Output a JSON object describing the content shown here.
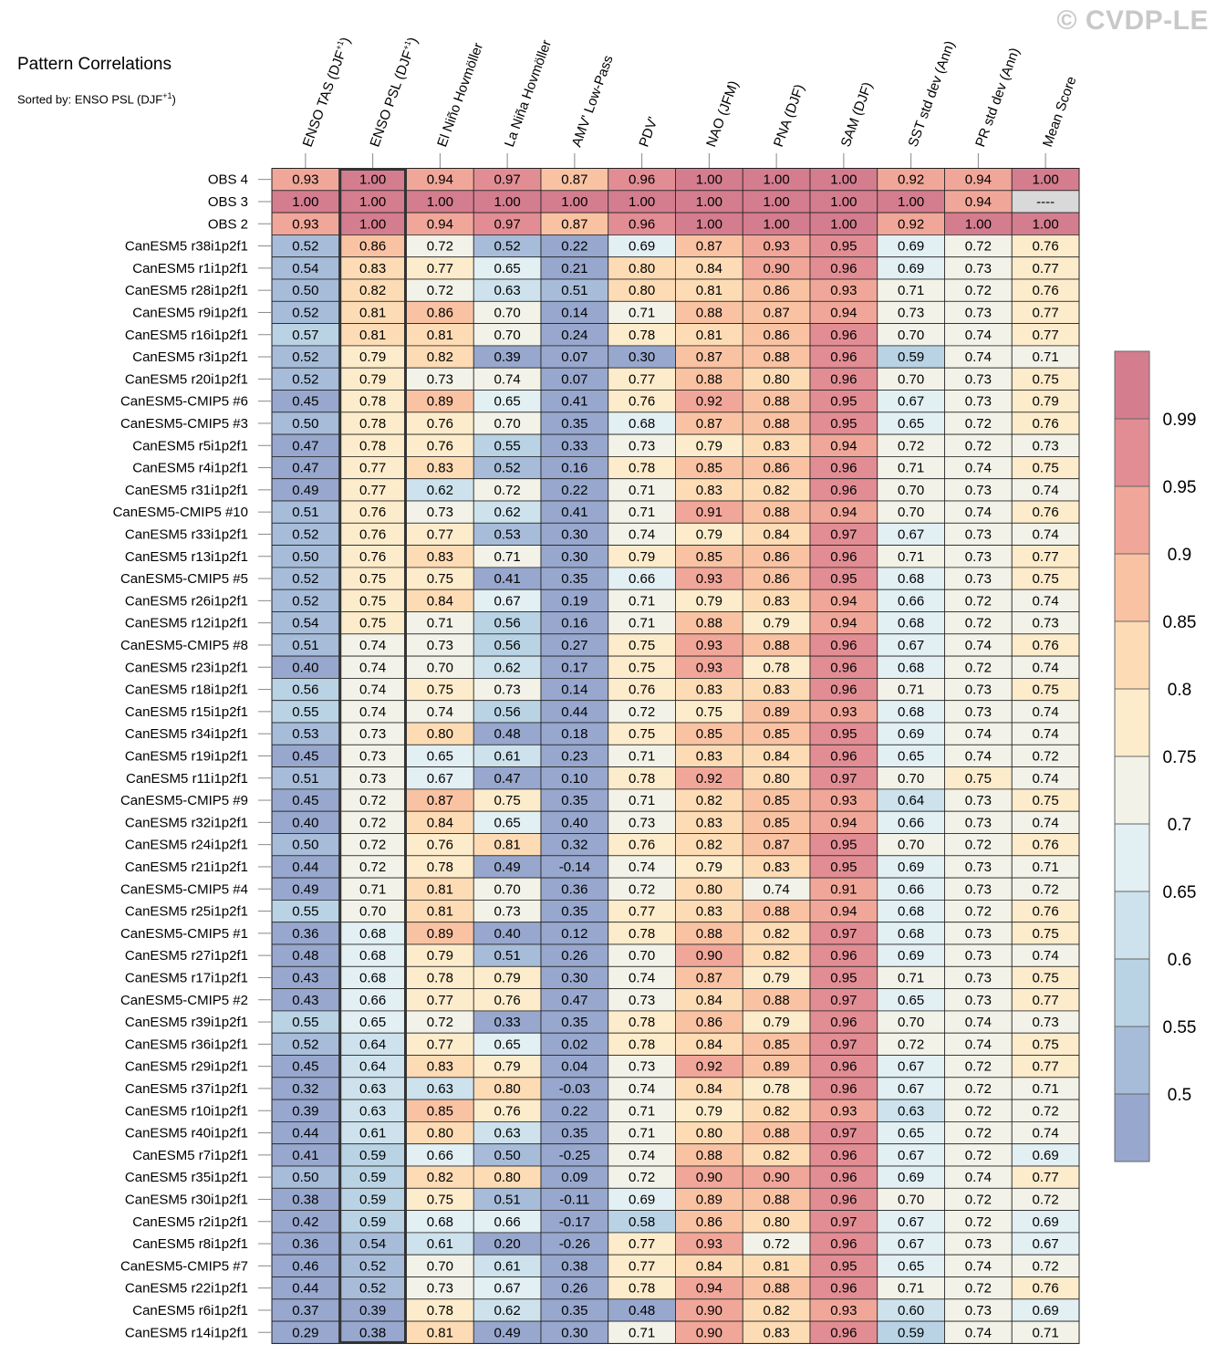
{
  "title": "Pattern Correlations",
  "subtitle_main": "Sorted by: ENSO PSL (DJF",
  "subtitle_sup": "+1",
  "subtitle_end": ")",
  "watermark": "© CVDP-LE",
  "chart_data": {
    "type": "heatmap",
    "title": "Pattern Correlations",
    "subtitle": "Sorted by: ENSO PSL (DJF+1)",
    "highlight_column": 1,
    "missing_label": "----",
    "columns": [
      {
        "main": "ENSO TAS (DJF",
        "sup": "+1",
        "end": ")"
      },
      {
        "main": "ENSO PSL (DJF",
        "sup": "+1",
        "end": ")"
      },
      {
        "main": "El Niño Hovmöller",
        "sup": "",
        "end": ""
      },
      {
        "main": "La Niña Hovmöller",
        "sup": "",
        "end": ""
      },
      {
        "main": "AMV' Low-Pass",
        "sup": "",
        "end": ""
      },
      {
        "main": "PDV'",
        "sup": "",
        "end": ""
      },
      {
        "main": "NAO (JFM)",
        "sup": "",
        "end": ""
      },
      {
        "main": "PNA (DJF)",
        "sup": "",
        "end": ""
      },
      {
        "main": "SAM (DJF)",
        "sup": "",
        "end": ""
      },
      {
        "main": "SST std dev (Ann)",
        "sup": "",
        "end": ""
      },
      {
        "main": "PR std dev (Ann)",
        "sup": "",
        "end": ""
      },
      {
        "main": "Mean Score",
        "sup": "",
        "end": ""
      }
    ],
    "rows": [
      {
        "name": "OBS 4",
        "values": [
          0.93,
          1.0,
          0.94,
          0.97,
          0.87,
          0.96,
          1.0,
          1.0,
          1.0,
          0.92,
          0.94,
          1.0
        ]
      },
      {
        "name": "OBS 3",
        "values": [
          1.0,
          1.0,
          1.0,
          1.0,
          1.0,
          1.0,
          1.0,
          1.0,
          1.0,
          1.0,
          0.94,
          null
        ]
      },
      {
        "name": "OBS 2",
        "values": [
          0.93,
          1.0,
          0.94,
          0.97,
          0.87,
          0.96,
          1.0,
          1.0,
          1.0,
          0.92,
          1.0,
          1.0
        ]
      },
      {
        "name": "CanESM5 r38i1p2f1",
        "values": [
          0.52,
          0.86,
          0.72,
          0.52,
          0.22,
          0.69,
          0.87,
          0.93,
          0.95,
          0.69,
          0.72,
          0.76
        ]
      },
      {
        "name": "CanESM5 r1i1p2f1",
        "values": [
          0.54,
          0.83,
          0.77,
          0.65,
          0.21,
          0.8,
          0.84,
          0.9,
          0.96,
          0.69,
          0.73,
          0.77
        ]
      },
      {
        "name": "CanESM5 r28i1p2f1",
        "values": [
          0.5,
          0.82,
          0.72,
          0.63,
          0.51,
          0.8,
          0.81,
          0.86,
          0.93,
          0.71,
          0.72,
          0.76
        ]
      },
      {
        "name": "CanESM5 r9i1p2f1",
        "values": [
          0.52,
          0.81,
          0.86,
          0.7,
          0.14,
          0.71,
          0.88,
          0.87,
          0.94,
          0.73,
          0.73,
          0.77
        ]
      },
      {
        "name": "CanESM5 r16i1p2f1",
        "values": [
          0.57,
          0.81,
          0.81,
          0.7,
          0.24,
          0.78,
          0.81,
          0.86,
          0.96,
          0.7,
          0.74,
          0.77
        ]
      },
      {
        "name": "CanESM5 r3i1p2f1",
        "values": [
          0.52,
          0.79,
          0.82,
          0.39,
          0.07,
          0.3,
          0.87,
          0.88,
          0.96,
          0.59,
          0.74,
          0.71
        ]
      },
      {
        "name": "CanESM5 r20i1p2f1",
        "values": [
          0.52,
          0.79,
          0.73,
          0.74,
          0.07,
          0.77,
          0.88,
          0.8,
          0.96,
          0.7,
          0.73,
          0.75
        ]
      },
      {
        "name": "CanESM5-CMIP5 #6",
        "values": [
          0.45,
          0.78,
          0.89,
          0.65,
          0.41,
          0.76,
          0.92,
          0.88,
          0.95,
          0.67,
          0.73,
          0.79
        ]
      },
      {
        "name": "CanESM5-CMIP5 #3",
        "values": [
          0.5,
          0.78,
          0.76,
          0.7,
          0.35,
          0.68,
          0.87,
          0.88,
          0.95,
          0.65,
          0.72,
          0.76
        ]
      },
      {
        "name": "CanESM5 r5i1p2f1",
        "values": [
          0.47,
          0.78,
          0.76,
          0.55,
          0.33,
          0.73,
          0.79,
          0.83,
          0.94,
          0.72,
          0.72,
          0.73
        ]
      },
      {
        "name": "CanESM5 r4i1p2f1",
        "values": [
          0.47,
          0.77,
          0.83,
          0.52,
          0.16,
          0.78,
          0.85,
          0.86,
          0.96,
          0.71,
          0.74,
          0.75
        ]
      },
      {
        "name": "CanESM5 r31i1p2f1",
        "values": [
          0.49,
          0.77,
          0.62,
          0.72,
          0.22,
          0.71,
          0.83,
          0.82,
          0.96,
          0.7,
          0.73,
          0.74
        ]
      },
      {
        "name": "CanESM5-CMIP5 #10",
        "values": [
          0.51,
          0.76,
          0.73,
          0.62,
          0.41,
          0.71,
          0.91,
          0.88,
          0.94,
          0.7,
          0.74,
          0.76
        ]
      },
      {
        "name": "CanESM5 r33i1p2f1",
        "values": [
          0.52,
          0.76,
          0.77,
          0.53,
          0.3,
          0.74,
          0.79,
          0.84,
          0.97,
          0.67,
          0.73,
          0.74
        ]
      },
      {
        "name": "CanESM5 r13i1p2f1",
        "values": [
          0.5,
          0.76,
          0.83,
          0.71,
          0.3,
          0.79,
          0.85,
          0.86,
          0.96,
          0.71,
          0.73,
          0.77
        ]
      },
      {
        "name": "CanESM5-CMIP5 #5",
        "values": [
          0.52,
          0.75,
          0.75,
          0.41,
          0.35,
          0.66,
          0.93,
          0.86,
          0.95,
          0.68,
          0.73,
          0.75
        ]
      },
      {
        "name": "CanESM5 r26i1p2f1",
        "values": [
          0.52,
          0.75,
          0.84,
          0.67,
          0.19,
          0.71,
          0.79,
          0.83,
          0.94,
          0.66,
          0.72,
          0.74
        ]
      },
      {
        "name": "CanESM5 r12i1p2f1",
        "values": [
          0.54,
          0.75,
          0.71,
          0.56,
          0.16,
          0.71,
          0.88,
          0.79,
          0.94,
          0.68,
          0.72,
          0.73
        ]
      },
      {
        "name": "CanESM5-CMIP5 #8",
        "values": [
          0.51,
          0.74,
          0.73,
          0.56,
          0.27,
          0.75,
          0.93,
          0.88,
          0.96,
          0.67,
          0.74,
          0.76
        ]
      },
      {
        "name": "CanESM5 r23i1p2f1",
        "values": [
          0.4,
          0.74,
          0.7,
          0.62,
          0.17,
          0.75,
          0.93,
          0.78,
          0.96,
          0.68,
          0.72,
          0.74
        ]
      },
      {
        "name": "CanESM5 r18i1p2f1",
        "values": [
          0.56,
          0.74,
          0.75,
          0.73,
          0.14,
          0.76,
          0.83,
          0.83,
          0.96,
          0.71,
          0.73,
          0.75
        ]
      },
      {
        "name": "CanESM5 r15i1p2f1",
        "values": [
          0.55,
          0.74,
          0.74,
          0.56,
          0.44,
          0.72,
          0.75,
          0.89,
          0.93,
          0.68,
          0.73,
          0.74
        ]
      },
      {
        "name": "CanESM5 r34i1p2f1",
        "values": [
          0.53,
          0.73,
          0.8,
          0.48,
          0.18,
          0.75,
          0.85,
          0.85,
          0.95,
          0.69,
          0.74,
          0.74
        ]
      },
      {
        "name": "CanESM5 r19i1p2f1",
        "values": [
          0.45,
          0.73,
          0.65,
          0.61,
          0.23,
          0.71,
          0.83,
          0.84,
          0.96,
          0.65,
          0.74,
          0.72
        ]
      },
      {
        "name": "CanESM5 r11i1p2f1",
        "values": [
          0.51,
          0.73,
          0.67,
          0.47,
          0.1,
          0.78,
          0.92,
          0.8,
          0.97,
          0.7,
          0.75,
          0.74
        ]
      },
      {
        "name": "CanESM5-CMIP5 #9",
        "values": [
          0.45,
          0.72,
          0.87,
          0.75,
          0.35,
          0.71,
          0.82,
          0.85,
          0.93,
          0.64,
          0.73,
          0.75
        ]
      },
      {
        "name": "CanESM5 r32i1p2f1",
        "values": [
          0.4,
          0.72,
          0.84,
          0.65,
          0.4,
          0.73,
          0.83,
          0.85,
          0.94,
          0.66,
          0.73,
          0.74
        ]
      },
      {
        "name": "CanESM5 r24i1p2f1",
        "values": [
          0.5,
          0.72,
          0.76,
          0.81,
          0.32,
          0.76,
          0.82,
          0.87,
          0.95,
          0.7,
          0.72,
          0.76
        ]
      },
      {
        "name": "CanESM5 r21i1p2f1",
        "values": [
          0.44,
          0.72,
          0.78,
          0.49,
          -0.14,
          0.74,
          0.79,
          0.83,
          0.95,
          0.69,
          0.73,
          0.71
        ]
      },
      {
        "name": "CanESM5-CMIP5 #4",
        "values": [
          0.49,
          0.71,
          0.81,
          0.7,
          0.36,
          0.72,
          0.8,
          0.74,
          0.91,
          0.66,
          0.73,
          0.72
        ]
      },
      {
        "name": "CanESM5 r25i1p2f1",
        "values": [
          0.55,
          0.7,
          0.81,
          0.73,
          0.35,
          0.77,
          0.83,
          0.88,
          0.94,
          0.68,
          0.72,
          0.76
        ]
      },
      {
        "name": "CanESM5-CMIP5 #1",
        "values": [
          0.36,
          0.68,
          0.89,
          0.4,
          0.12,
          0.78,
          0.88,
          0.82,
          0.97,
          0.68,
          0.73,
          0.75
        ]
      },
      {
        "name": "CanESM5 r27i1p2f1",
        "values": [
          0.48,
          0.68,
          0.79,
          0.51,
          0.26,
          0.7,
          0.9,
          0.82,
          0.96,
          0.69,
          0.73,
          0.74
        ]
      },
      {
        "name": "CanESM5 r17i1p2f1",
        "values": [
          0.43,
          0.68,
          0.78,
          0.79,
          0.3,
          0.74,
          0.87,
          0.79,
          0.95,
          0.71,
          0.73,
          0.75
        ]
      },
      {
        "name": "CanESM5-CMIP5 #2",
        "values": [
          0.43,
          0.66,
          0.77,
          0.76,
          0.47,
          0.73,
          0.84,
          0.88,
          0.97,
          0.65,
          0.73,
          0.77
        ]
      },
      {
        "name": "CanESM5 r39i1p2f1",
        "values": [
          0.55,
          0.65,
          0.72,
          0.33,
          0.35,
          0.78,
          0.86,
          0.79,
          0.96,
          0.7,
          0.74,
          0.73
        ]
      },
      {
        "name": "CanESM5 r36i1p2f1",
        "values": [
          0.52,
          0.64,
          0.77,
          0.65,
          0.02,
          0.78,
          0.84,
          0.85,
          0.97,
          0.72,
          0.74,
          0.75
        ]
      },
      {
        "name": "CanESM5 r29i1p2f1",
        "values": [
          0.45,
          0.64,
          0.83,
          0.79,
          0.04,
          0.73,
          0.92,
          0.89,
          0.96,
          0.67,
          0.72,
          0.77
        ]
      },
      {
        "name": "CanESM5 r37i1p2f1",
        "values": [
          0.32,
          0.63,
          0.63,
          0.8,
          -0.03,
          0.74,
          0.84,
          0.78,
          0.96,
          0.67,
          0.72,
          0.71
        ]
      },
      {
        "name": "CanESM5 r10i1p2f1",
        "values": [
          0.39,
          0.63,
          0.85,
          0.76,
          0.22,
          0.71,
          0.79,
          0.82,
          0.93,
          0.63,
          0.72,
          0.72
        ]
      },
      {
        "name": "CanESM5 r40i1p2f1",
        "values": [
          0.44,
          0.61,
          0.8,
          0.63,
          0.35,
          0.71,
          0.8,
          0.88,
          0.97,
          0.65,
          0.72,
          0.74
        ]
      },
      {
        "name": "CanESM5 r7i1p2f1",
        "values": [
          0.41,
          0.59,
          0.66,
          0.5,
          -0.25,
          0.74,
          0.88,
          0.82,
          0.96,
          0.67,
          0.72,
          0.69
        ]
      },
      {
        "name": "CanESM5 r35i1p2f1",
        "values": [
          0.5,
          0.59,
          0.82,
          0.8,
          0.09,
          0.72,
          0.9,
          0.9,
          0.96,
          0.69,
          0.74,
          0.77
        ]
      },
      {
        "name": "CanESM5 r30i1p2f1",
        "values": [
          0.38,
          0.59,
          0.75,
          0.51,
          -0.11,
          0.69,
          0.89,
          0.88,
          0.96,
          0.7,
          0.72,
          0.72
        ]
      },
      {
        "name": "CanESM5 r2i1p2f1",
        "values": [
          0.42,
          0.59,
          0.68,
          0.66,
          -0.17,
          0.58,
          0.86,
          0.8,
          0.97,
          0.67,
          0.72,
          0.69
        ]
      },
      {
        "name": "CanESM5 r8i1p2f1",
        "values": [
          0.36,
          0.54,
          0.61,
          0.2,
          -0.26,
          0.77,
          0.93,
          0.72,
          0.96,
          0.67,
          0.73,
          0.67
        ]
      },
      {
        "name": "CanESM5-CMIP5 #7",
        "values": [
          0.46,
          0.52,
          0.7,
          0.61,
          0.38,
          0.77,
          0.84,
          0.81,
          0.95,
          0.65,
          0.74,
          0.72
        ]
      },
      {
        "name": "CanESM5 r22i1p2f1",
        "values": [
          0.44,
          0.52,
          0.73,
          0.67,
          0.26,
          0.78,
          0.94,
          0.88,
          0.96,
          0.71,
          0.72,
          0.76
        ]
      },
      {
        "name": "CanESM5 r6i1p2f1",
        "values": [
          0.37,
          0.39,
          0.78,
          0.62,
          0.35,
          0.48,
          0.9,
          0.82,
          0.93,
          0.6,
          0.73,
          0.69
        ]
      },
      {
        "name": "CanESM5 r14i1p2f1",
        "values": [
          0.29,
          0.38,
          0.81,
          0.49,
          0.3,
          0.71,
          0.9,
          0.83,
          0.96,
          0.59,
          0.74,
          0.71
        ]
      }
    ],
    "colorbar": {
      "thresholds": [
        0.5,
        0.55,
        0.6,
        0.65,
        0.7,
        0.75,
        0.8,
        0.85,
        0.9,
        0.95,
        0.99
      ],
      "tick_labels": [
        "0.5",
        "0.55",
        "0.6",
        "0.65",
        "0.7",
        "0.75",
        "0.8",
        "0.85",
        "0.9",
        "0.95",
        "0.99"
      ],
      "colors": [
        "#98a7cd",
        "#a7bcd9",
        "#b9d3e4",
        "#cde2ec",
        "#e2eff3",
        "#f3f2e8",
        "#fdeccb",
        "#fddcb5",
        "#f9c3a3",
        "#f0a799",
        "#e28d94",
        "#d47d8f"
      ],
      "missing_color": "#d9d9d9"
    }
  }
}
